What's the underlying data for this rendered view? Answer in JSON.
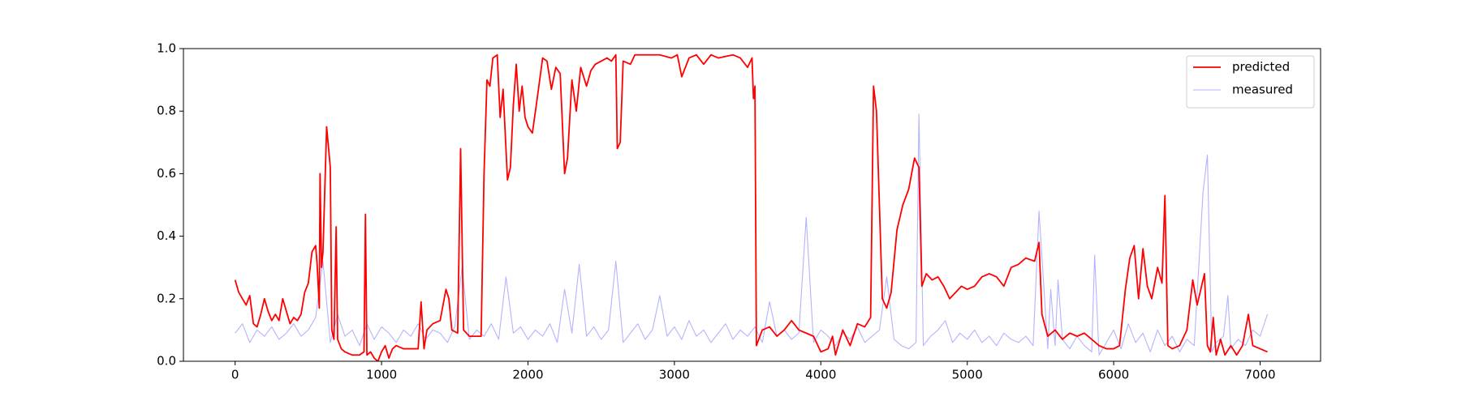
{
  "chart_data": {
    "type": "line",
    "xlim": [
      -353,
      7413
    ],
    "xticks": [
      0,
      1000,
      2000,
      3000,
      4000,
      5000,
      6000,
      7000
    ],
    "ylim": [
      0,
      1
    ],
    "yticks": [
      {
        "value": 0,
        "label": "0.0"
      },
      {
        "value": 0.2,
        "label": "0.2"
      },
      {
        "value": 0.4,
        "label": "0.4"
      },
      {
        "value": 0.6,
        "label": "0.6"
      },
      {
        "value": 0.8,
        "label": "0.8"
      },
      {
        "value": 1,
        "label": "1.0"
      }
    ],
    "legend": "upper right",
    "series": [
      {
        "name": "predicted",
        "color": "#ff0000",
        "x": [
          0,
          25,
          50,
          75,
          100,
          125,
          150,
          175,
          200,
          225,
          250,
          275,
          300,
          325,
          350,
          375,
          400,
          425,
          450,
          475,
          500,
          525,
          550,
          560,
          575,
          580,
          590,
          600,
          625,
          650,
          660,
          675,
          690,
          700,
          725,
          750,
          800,
          850,
          880,
          890,
          900,
          925,
          950,
          975,
          1000,
          1025,
          1050,
          1075,
          1100,
          1150,
          1200,
          1250,
          1270,
          1290,
          1310,
          1350,
          1400,
          1440,
          1460,
          1480,
          1520,
          1540,
          1560,
          1600,
          1650,
          1680,
          1700,
          1720,
          1740,
          1760,
          1790,
          1810,
          1830,
          1860,
          1880,
          1900,
          1920,
          1940,
          1960,
          1980,
          2000,
          2030,
          2060,
          2100,
          2130,
          2160,
          2190,
          2220,
          2250,
          2270,
          2300,
          2330,
          2360,
          2400,
          2430,
          2460,
          2500,
          2540,
          2570,
          2600,
          2610,
          2630,
          2650,
          2700,
          2730,
          2800,
          2900,
          2980,
          3020,
          3050,
          3100,
          3150,
          3200,
          3250,
          3300,
          3400,
          3450,
          3500,
          3530,
          3540,
          3550,
          3560,
          3600,
          3650,
          3700,
          3750,
          3800,
          3850,
          3900,
          3950,
          4000,
          4050,
          4080,
          4100,
          4150,
          4200,
          4250,
          4300,
          4340,
          4360,
          4380,
          4400,
          4420,
          4450,
          4480,
          4520,
          4560,
          4600,
          4640,
          4670,
          4690,
          4720,
          4760,
          4800,
          4840,
          4880,
          4920,
          4960,
          5000,
          5050,
          5100,
          5150,
          5200,
          5250,
          5300,
          5350,
          5400,
          5460,
          5490,
          5510,
          5550,
          5600,
          5650,
          5700,
          5750,
          5800,
          5850,
          5900,
          5950,
          6000,
          6040,
          6080,
          6110,
          6140,
          6170,
          6200,
          6230,
          6260,
          6300,
          6330,
          6350,
          6370,
          6400,
          6450,
          6500,
          6540,
          6570,
          6620,
          6640,
          6660,
          6680,
          6700,
          6730,
          6760,
          6800,
          6840,
          6880,
          6920,
          6950,
          7000,
          7050
        ],
        "values": [
          0.26,
          0.22,
          0.2,
          0.18,
          0.21,
          0.12,
          0.11,
          0.15,
          0.2,
          0.16,
          0.13,
          0.15,
          0.13,
          0.2,
          0.16,
          0.12,
          0.14,
          0.13,
          0.15,
          0.22,
          0.25,
          0.35,
          0.37,
          0.31,
          0.17,
          0.6,
          0.3,
          0.35,
          0.75,
          0.62,
          0.1,
          0.07,
          0.43,
          0.07,
          0.04,
          0.03,
          0.02,
          0.02,
          0.03,
          0.47,
          0.02,
          0.03,
          0.01,
          0.0,
          0.03,
          0.05,
          0.01,
          0.04,
          0.05,
          0.04,
          0.04,
          0.04,
          0.19,
          0.04,
          0.1,
          0.12,
          0.13,
          0.23,
          0.2,
          0.1,
          0.09,
          0.68,
          0.1,
          0.08,
          0.08,
          0.08,
          0.6,
          0.9,
          0.88,
          0.97,
          0.98,
          0.78,
          0.87,
          0.58,
          0.62,
          0.82,
          0.95,
          0.8,
          0.88,
          0.78,
          0.75,
          0.73,
          0.83,
          0.97,
          0.96,
          0.87,
          0.94,
          0.92,
          0.6,
          0.65,
          0.9,
          0.8,
          0.94,
          0.88,
          0.93,
          0.95,
          0.96,
          0.97,
          0.96,
          0.98,
          0.68,
          0.7,
          0.96,
          0.95,
          0.98,
          0.98,
          0.98,
          0.97,
          0.98,
          0.91,
          0.97,
          0.98,
          0.95,
          0.98,
          0.97,
          0.98,
          0.97,
          0.94,
          0.97,
          0.84,
          0.88,
          0.05,
          0.1,
          0.11,
          0.08,
          0.1,
          0.13,
          0.1,
          0.09,
          0.08,
          0.03,
          0.04,
          0.08,
          0.02,
          0.1,
          0.05,
          0.12,
          0.11,
          0.14,
          0.88,
          0.8,
          0.5,
          0.2,
          0.17,
          0.22,
          0.42,
          0.5,
          0.55,
          0.65,
          0.62,
          0.24,
          0.28,
          0.26,
          0.27,
          0.24,
          0.2,
          0.22,
          0.24,
          0.23,
          0.24,
          0.27,
          0.28,
          0.27,
          0.24,
          0.3,
          0.31,
          0.33,
          0.32,
          0.38,
          0.15,
          0.08,
          0.1,
          0.07,
          0.09,
          0.08,
          0.09,
          0.07,
          0.05,
          0.04,
          0.04,
          0.05,
          0.23,
          0.33,
          0.37,
          0.2,
          0.36,
          0.24,
          0.2,
          0.3,
          0.25,
          0.53,
          0.05,
          0.04,
          0.05,
          0.1,
          0.26,
          0.18,
          0.28,
          0.05,
          0.03,
          0.14,
          0.02,
          0.07,
          0.02,
          0.05,
          0.02,
          0.05,
          0.15,
          0.05,
          0.04,
          0.03
        ]
      },
      {
        "name": "measured",
        "color": "#b3b3ff",
        "x": [
          0,
          50,
          100,
          150,
          200,
          250,
          300,
          350,
          400,
          450,
          500,
          550,
          600,
          650,
          700,
          750,
          800,
          850,
          900,
          950,
          1000,
          1050,
          1100,
          1150,
          1200,
          1250,
          1300,
          1350,
          1400,
          1450,
          1500,
          1550,
          1600,
          1650,
          1700,
          1750,
          1800,
          1850,
          1900,
          1950,
          2000,
          2050,
          2100,
          2150,
          2200,
          2250,
          2300,
          2350,
          2400,
          2450,
          2500,
          2550,
          2600,
          2650,
          2700,
          2750,
          2800,
          2850,
          2900,
          2950,
          3000,
          3050,
          3100,
          3150,
          3200,
          3250,
          3300,
          3350,
          3400,
          3450,
          3500,
          3550,
          3600,
          3650,
          3700,
          3750,
          3800,
          3850,
          3900,
          3950,
          4000,
          4050,
          4100,
          4150,
          4200,
          4250,
          4300,
          4350,
          4400,
          4450,
          4500,
          4550,
          4600,
          4650,
          4670,
          4700,
          4750,
          4800,
          4850,
          4900,
          4950,
          5000,
          5050,
          5100,
          5150,
          5200,
          5250,
          5300,
          5350,
          5400,
          5450,
          5490,
          5550,
          5570,
          5600,
          5620,
          5650,
          5700,
          5750,
          5800,
          5850,
          5870,
          5900,
          5950,
          6000,
          6050,
          6100,
          6150,
          6200,
          6250,
          6300,
          6350,
          6400,
          6450,
          6500,
          6550,
          6610,
          6640,
          6670,
          6700,
          6750,
          6780,
          6800,
          6850,
          6900,
          6950,
          7000,
          7050
        ],
        "values": [
          0.09,
          0.12,
          0.06,
          0.1,
          0.08,
          0.11,
          0.07,
          0.09,
          0.12,
          0.08,
          0.1,
          0.14,
          0.32,
          0.06,
          0.15,
          0.08,
          0.1,
          0.05,
          0.12,
          0.07,
          0.11,
          0.09,
          0.06,
          0.1,
          0.08,
          0.12,
          0.07,
          0.1,
          0.09,
          0.06,
          0.11,
          0.3,
          0.07,
          0.1,
          0.08,
          0.12,
          0.07,
          0.27,
          0.09,
          0.11,
          0.07,
          0.1,
          0.08,
          0.12,
          0.06,
          0.23,
          0.09,
          0.31,
          0.08,
          0.11,
          0.07,
          0.1,
          0.32,
          0.06,
          0.09,
          0.12,
          0.07,
          0.1,
          0.21,
          0.08,
          0.11,
          0.07,
          0.13,
          0.08,
          0.1,
          0.06,
          0.09,
          0.12,
          0.07,
          0.1,
          0.08,
          0.11,
          0.06,
          0.19,
          0.08,
          0.1,
          0.07,
          0.09,
          0.46,
          0.06,
          0.1,
          0.08,
          0.05,
          0.09,
          0.07,
          0.11,
          0.06,
          0.08,
          0.1,
          0.27,
          0.07,
          0.05,
          0.04,
          0.06,
          0.79,
          0.05,
          0.08,
          0.1,
          0.13,
          0.06,
          0.09,
          0.07,
          0.1,
          0.06,
          0.08,
          0.05,
          0.09,
          0.07,
          0.06,
          0.08,
          0.05,
          0.48,
          0.04,
          0.23,
          0.05,
          0.26,
          0.07,
          0.04,
          0.08,
          0.05,
          0.03,
          0.34,
          0.02,
          0.06,
          0.1,
          0.04,
          0.12,
          0.06,
          0.09,
          0.03,
          0.1,
          0.05,
          0.08,
          0.03,
          0.07,
          0.05,
          0.54,
          0.66,
          0.03,
          0.06,
          0.08,
          0.21,
          0.04,
          0.07,
          0.05,
          0.1,
          0.08,
          0.15
        ]
      }
    ]
  }
}
